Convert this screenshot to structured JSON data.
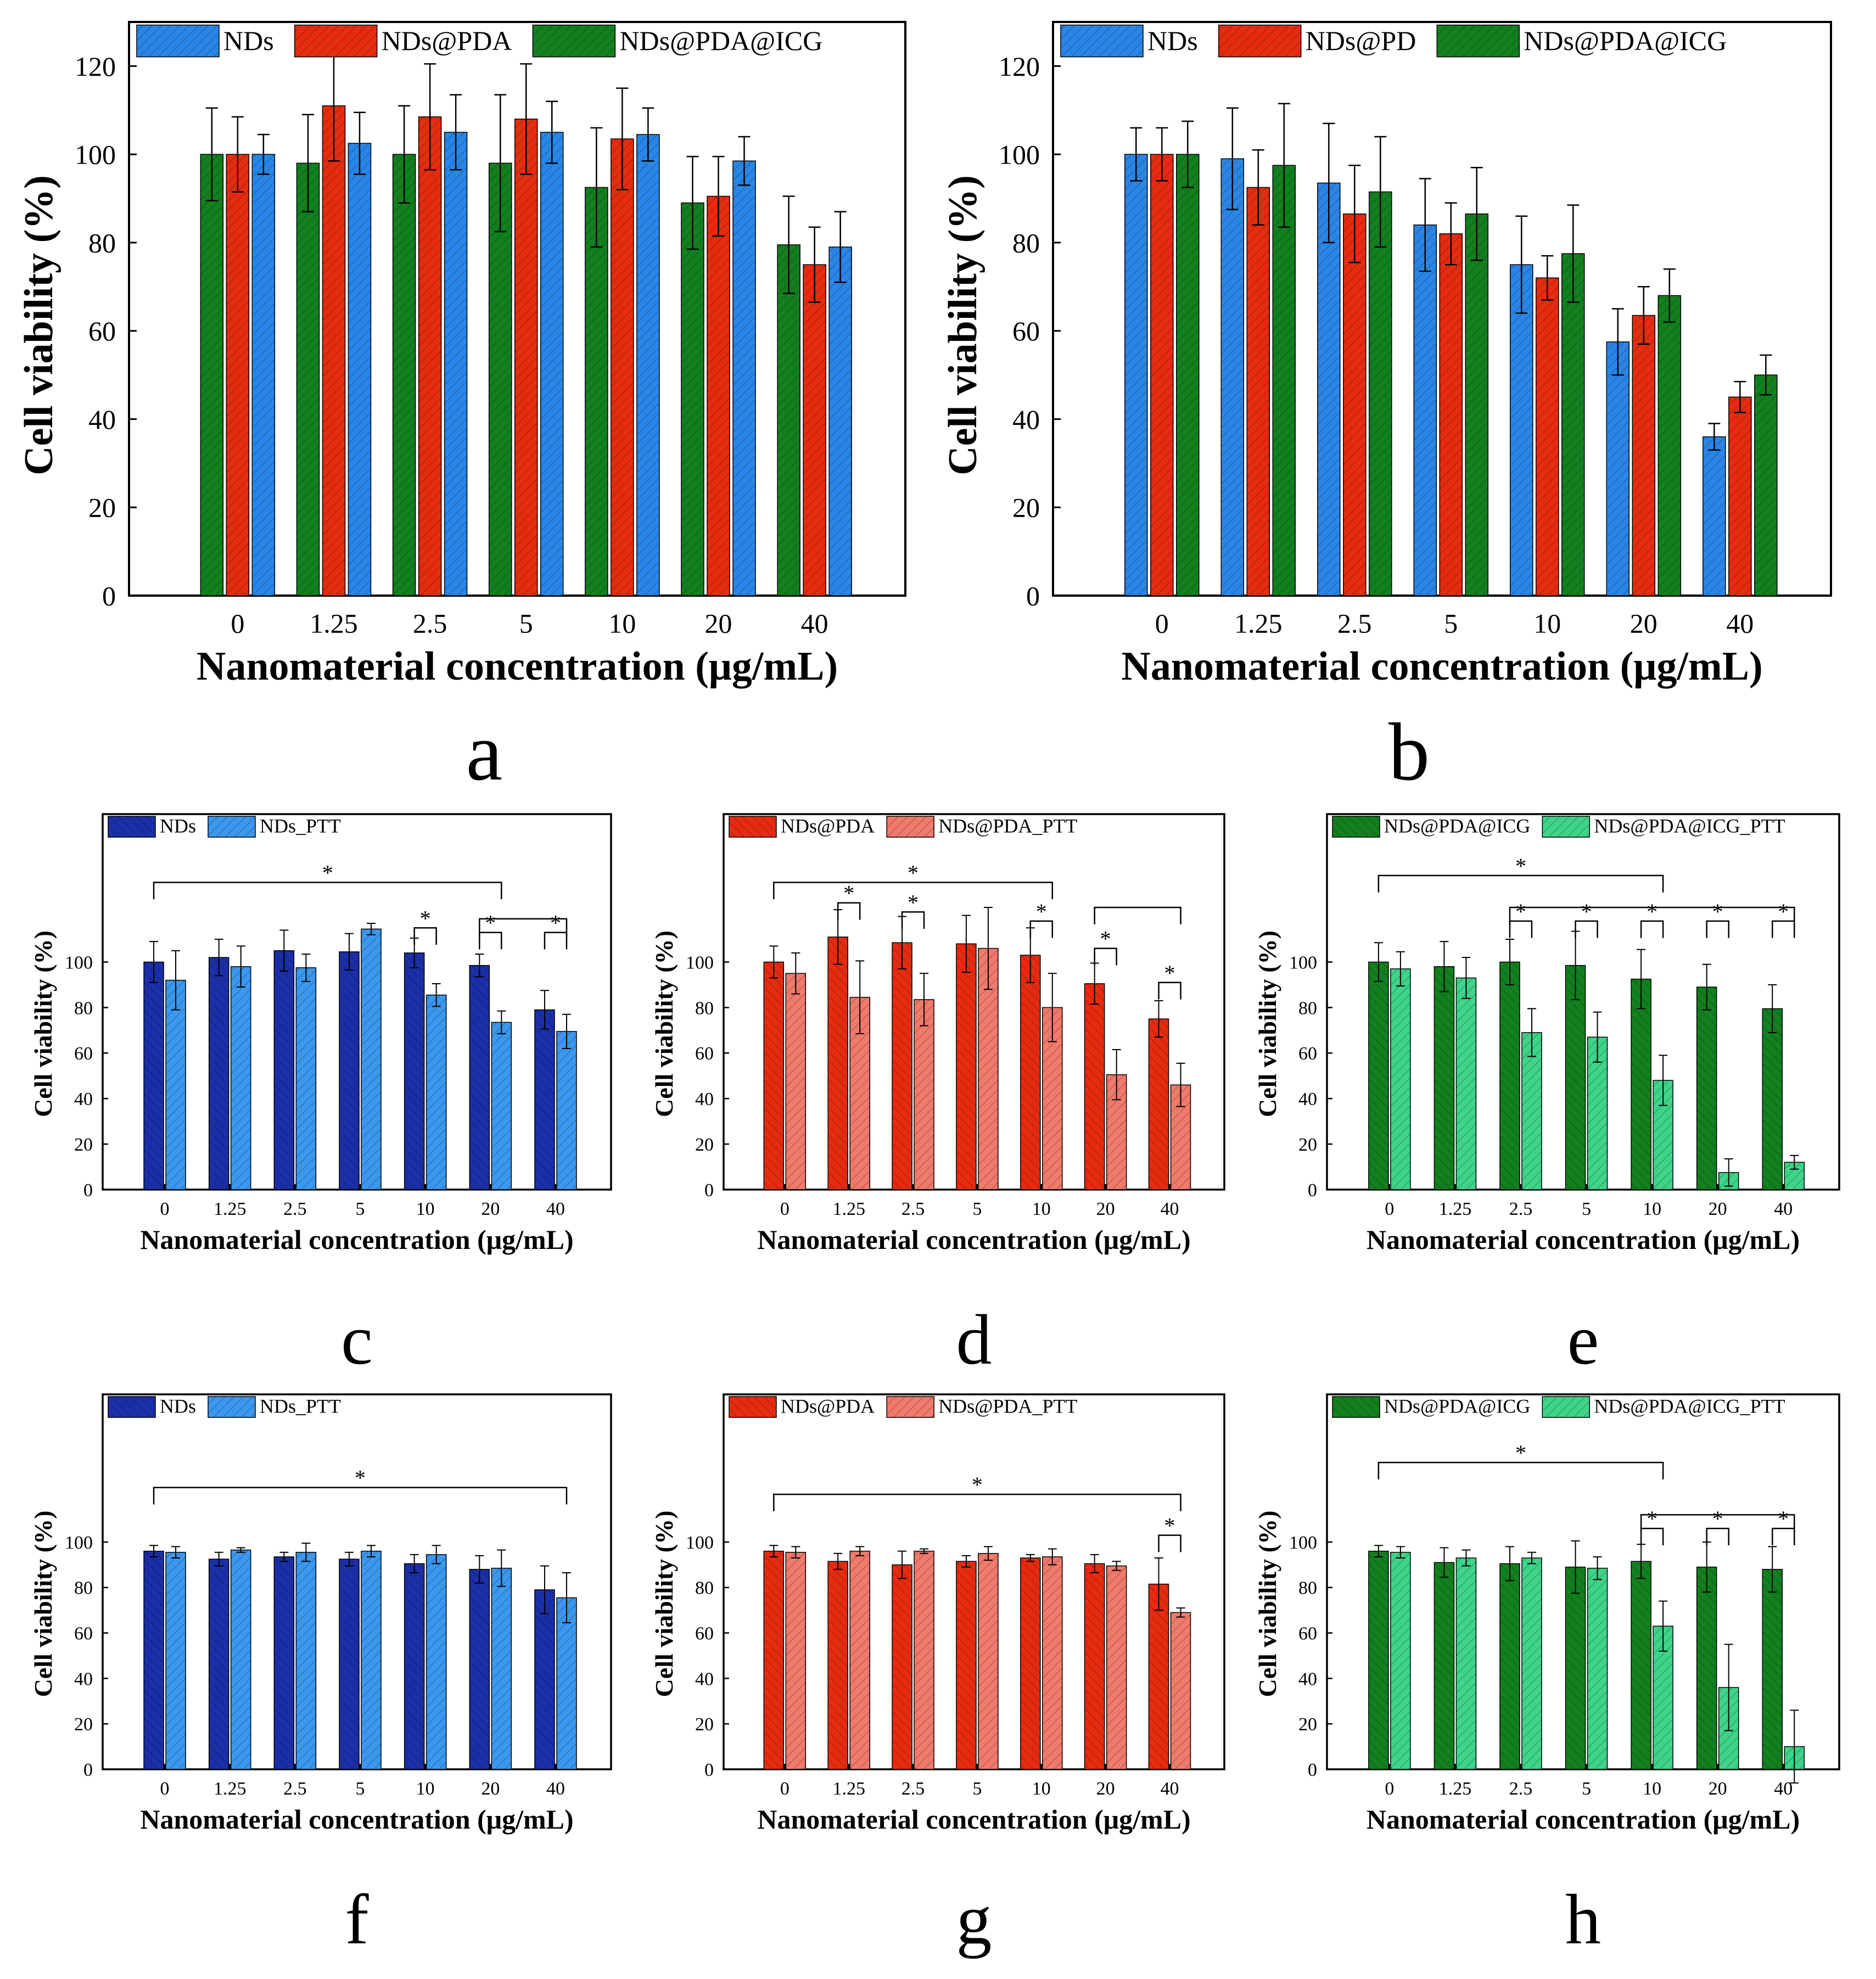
{
  "colors": {
    "blue": "#2a86e6",
    "red": "#e62c10",
    "green": "#12801f",
    "navy": "#1b2fa8",
    "light_blue": "#3b98ee",
    "light_red": "#f07a6c",
    "light_green": "#3fd489"
  },
  "chart_data": [
    {
      "panel": "a",
      "type": "bar",
      "categories": [
        "0",
        "1.25",
        "2.5",
        "5",
        "10",
        "20",
        "40"
      ],
      "series": [
        {
          "name": "NDs@PDA@ICG",
          "color_key": "green",
          "values": [
            100,
            98,
            100,
            98,
            92.5,
            89,
            79.5
          ],
          "errors": [
            10.5,
            11,
            11,
            15.5,
            13.5,
            10.5,
            11
          ]
        },
        {
          "name": "NDs@PDA",
          "color_key": "red",
          "values": [
            100,
            111,
            108.5,
            108,
            103.5,
            90.5,
            75
          ],
          "errors": [
            8.5,
            12.5,
            12,
            12.5,
            11.5,
            9,
            8.5
          ]
        },
        {
          "name": "NDs",
          "color_key": "blue",
          "values": [
            100,
            102.5,
            105,
            105,
            104.5,
            98.5,
            79
          ],
          "errors": [
            4.5,
            7,
            8.5,
            7,
            6,
            5.5,
            8
          ]
        }
      ],
      "legend": [
        "NDs",
        "NDs@PDA",
        "NDs@PDA@ICG"
      ],
      "legend_order": [
        2,
        1,
        0
      ],
      "xlabel": "Nanomaterial concentration (μg/mL)",
      "ylabel": "Cell viability (%)",
      "ylim": [
        0,
        130
      ],
      "yticks": [
        0,
        20,
        40,
        60,
        80,
        100,
        120
      ],
      "letter": "a",
      "size": "large",
      "brackets": []
    },
    {
      "panel": "b",
      "type": "bar",
      "categories": [
        "0",
        "1.25",
        "2.5",
        "5",
        "10",
        "20",
        "40"
      ],
      "series": [
        {
          "name": "NDs",
          "color_key": "blue",
          "values": [
            100,
            99,
            93.5,
            84,
            75,
            57.5,
            36
          ],
          "errors": [
            6,
            11.5,
            13.5,
            10.5,
            11,
            7.5,
            3
          ]
        },
        {
          "name": "NDs@PD",
          "color_key": "red",
          "values": [
            100,
            92.5,
            86.5,
            82,
            72,
            63.5,
            45
          ],
          "errors": [
            6,
            8.5,
            11,
            7,
            5,
            6.5,
            3.5
          ]
        },
        {
          "name": "NDs@PDA@ICG",
          "color_key": "green",
          "values": [
            100,
            97.5,
            91.5,
            86.5,
            77.5,
            68,
            50
          ],
          "errors": [
            7.5,
            14,
            12.5,
            10.5,
            11,
            6,
            4.5
          ]
        }
      ],
      "legend": [
        "NDs",
        "NDs@PD",
        "NDs@PDA@ICG"
      ],
      "legend_order": [
        0,
        1,
        2
      ],
      "xlabel": "Nanomaterial concentration (μg/mL)",
      "ylabel": "Cell viability (%)",
      "ylim": [
        0,
        130
      ],
      "yticks": [
        0,
        20,
        40,
        60,
        80,
        100,
        120
      ],
      "letter": "b",
      "size": "large",
      "brackets": []
    },
    {
      "panel": "c",
      "type": "bar",
      "categories": [
        "0",
        "1.25",
        "2.5",
        "5",
        "10",
        "20",
        "40"
      ],
      "series": [
        {
          "name": "NDs",
          "color_key": "navy",
          "values": [
            100,
            102,
            105,
            104.5,
            104,
            98.5,
            79
          ],
          "errors": [
            9,
            8,
            9,
            8,
            6.5,
            5,
            8.5
          ]
        },
        {
          "name": "NDs_PTT",
          "color_key": "light_blue",
          "values": [
            92,
            98,
            97.5,
            114.5,
            85.5,
            73.5,
            69.5
          ],
          "errors": [
            13,
            9,
            6,
            2.5,
            5,
            5,
            7.5
          ]
        }
      ],
      "legend": [
        "NDs",
        "NDs_PTT"
      ],
      "legend_order": [
        0,
        1
      ],
      "xlabel": "Nanomaterial concentration (μg/mL)",
      "ylabel": "Cell viability (%)",
      "ylim": [
        0,
        165
      ],
      "yticks": [
        0,
        20,
        40,
        60,
        80,
        100
      ],
      "letter": "c",
      "size": "small",
      "brackets": [
        {
          "from_cat": 0,
          "from_s": 0,
          "to_cat": 5,
          "to_s": 1,
          "label": "*",
          "level": 135
        },
        {
          "from_cat": 4,
          "from_s": 0,
          "to_cat": 4,
          "to_s": 1,
          "label": "*",
          "level": 115
        },
        {
          "from_cat": 5,
          "from_s": 0,
          "to_cat": 5,
          "to_s": 1,
          "label": "*",
          "level": 113
        },
        {
          "from_cat": 6,
          "from_s": 0,
          "to_cat": 6,
          "to_s": 1,
          "label": "*",
          "level": 113
        },
        {
          "from_cat": 5,
          "from_s": 0,
          "to_cat": 6,
          "to_s": 1,
          "label": "",
          "level": 119
        }
      ]
    },
    {
      "panel": "d",
      "type": "bar",
      "categories": [
        "0",
        "1.25",
        "2.5",
        "5",
        "10",
        "20",
        "40"
      ],
      "series": [
        {
          "name": "NDs@PDA",
          "color_key": "red",
          "values": [
            100,
            111,
            108.5,
            108,
            103,
            90.5,
            75
          ],
          "errors": [
            7,
            12,
            11.5,
            12.5,
            12,
            9,
            8
          ]
        },
        {
          "name": "NDs@PDA_PTT",
          "color_key": "light_red",
          "values": [
            95,
            84.5,
            83.5,
            106,
            80,
            50.5,
            46
          ],
          "errors": [
            9,
            16,
            11.5,
            18,
            15,
            11,
            9.5
          ]
        }
      ],
      "legend": [
        "NDs@PDA",
        "NDs@PDA_PTT"
      ],
      "legend_order": [
        0,
        1
      ],
      "xlabel": "Nanomaterial concentration (μg/mL)",
      "ylabel": "Cell viability (%)",
      "ylim": [
        0,
        165
      ],
      "yticks": [
        0,
        20,
        40,
        60,
        80,
        100
      ],
      "letter": "d",
      "size": "small",
      "brackets": [
        {
          "from_cat": 0,
          "from_s": 0,
          "to_cat": 4,
          "to_s": 1,
          "label": "*",
          "level": 135
        },
        {
          "from_cat": 1,
          "from_s": 0,
          "to_cat": 1,
          "to_s": 1,
          "label": "*",
          "level": 126
        },
        {
          "from_cat": 2,
          "from_s": 0,
          "to_cat": 2,
          "to_s": 1,
          "label": "*",
          "level": 122
        },
        {
          "from_cat": 4,
          "from_s": 0,
          "to_cat": 4,
          "to_s": 1,
          "label": "*",
          "level": 118
        },
        {
          "from_cat": 5,
          "from_s": 0,
          "to_cat": 5,
          "to_s": 1,
          "label": "*",
          "level": 106
        },
        {
          "from_cat": 6,
          "from_s": 0,
          "to_cat": 6,
          "to_s": 1,
          "label": "*",
          "level": 91
        },
        {
          "from_cat": 5,
          "from_s": 0,
          "to_cat": 6,
          "to_s": 1,
          "label": "",
          "level": 124
        }
      ]
    },
    {
      "panel": "e",
      "type": "bar",
      "categories": [
        "0",
        "1.25",
        "2.5",
        "5",
        "10",
        "20",
        "40"
      ],
      "series": [
        {
          "name": "NDs@PDA@ICG",
          "color_key": "green",
          "values": [
            100,
            98,
            100,
            98.5,
            92.5,
            89,
            79.5
          ],
          "errors": [
            8.5,
            11,
            10,
            15,
            13,
            10,
            10.5
          ]
        },
        {
          "name": "NDs@PDA@ICG_PTT",
          "color_key": "light_green",
          "values": [
            97,
            93,
            69,
            67,
            48,
            7.5,
            12
          ],
          "errors": [
            7.5,
            9,
            10.5,
            11,
            11,
            6,
            3
          ]
        }
      ],
      "legend": [
        "NDs@PDA@ICG",
        "NDs@PDA@ICG_PTT"
      ],
      "legend_order": [
        0,
        1
      ],
      "xlabel": "Nanomaterial concentration (μg/mL)",
      "ylabel": "Cell viability (%)",
      "ylim": [
        0,
        165
      ],
      "yticks": [
        0,
        20,
        40,
        60,
        80,
        100
      ],
      "letter": "e",
      "size": "small",
      "brackets": [
        {
          "from_cat": 0,
          "from_s": 0,
          "to_cat": 4,
          "to_s": 1,
          "label": "*",
          "level": 138
        },
        {
          "from_cat": 2,
          "from_s": 0,
          "to_cat": 2,
          "to_s": 1,
          "label": "*",
          "level": 118
        },
        {
          "from_cat": 3,
          "from_s": 0,
          "to_cat": 3,
          "to_s": 1,
          "label": "*",
          "level": 118
        },
        {
          "from_cat": 4,
          "from_s": 0,
          "to_cat": 4,
          "to_s": 1,
          "label": "*",
          "level": 118
        },
        {
          "from_cat": 5,
          "from_s": 0,
          "to_cat": 5,
          "to_s": 1,
          "label": "*",
          "level": 118
        },
        {
          "from_cat": 6,
          "from_s": 0,
          "to_cat": 6,
          "to_s": 1,
          "label": "*",
          "level": 118
        },
        {
          "from_cat": 2,
          "from_s": 0,
          "to_cat": 6,
          "to_s": 1,
          "label": "",
          "level": 124
        }
      ]
    },
    {
      "panel": "f",
      "type": "bar",
      "categories": [
        "0",
        "1.25",
        "2.5",
        "5",
        "10",
        "20",
        "40"
      ],
      "series": [
        {
          "name": "NDs",
          "color_key": "navy",
          "values": [
            96,
            92.5,
            93.5,
            92.5,
            90.5,
            88,
            79
          ],
          "errors": [
            2.5,
            3,
            2,
            3,
            4,
            6,
            10.5
          ]
        },
        {
          "name": "NDs_PTT",
          "color_key": "light_blue",
          "values": [
            95.5,
            96.5,
            95.5,
            96,
            94.5,
            88.5,
            75.5
          ],
          "errors": [
            2.5,
            1,
            4,
            2.5,
            4,
            8,
            11
          ]
        }
      ],
      "legend": [
        "NDs",
        "NDs_PTT"
      ],
      "legend_order": [
        0,
        1
      ],
      "xlabel": "Nanomaterial concentration (μg/mL)",
      "ylabel": "Cell viability (%)",
      "ylim": [
        0,
        165
      ],
      "yticks": [
        0,
        20,
        40,
        60,
        80,
        100
      ],
      "letter": "f",
      "size": "small",
      "brackets": [
        {
          "from_cat": 0,
          "from_s": 0,
          "to_cat": 6,
          "to_s": 1,
          "label": "*",
          "level": 124
        }
      ]
    },
    {
      "panel": "g",
      "type": "bar",
      "categories": [
        "0",
        "1.25",
        "2.5",
        "5",
        "10",
        "20",
        "40"
      ],
      "series": [
        {
          "name": "NDs@PDA",
          "color_key": "red",
          "values": [
            96,
            91.5,
            90,
            91.5,
            93,
            90.5,
            81.5
          ],
          "errors": [
            2.5,
            3.5,
            6,
            2.5,
            1.5,
            4,
            11.5
          ]
        },
        {
          "name": "NDs@PDA_PTT",
          "color_key": "light_red",
          "values": [
            95.5,
            96,
            96,
            95,
            93.5,
            89.5,
            69
          ],
          "errors": [
            2.5,
            2,
            1,
            3,
            3.5,
            2,
            2
          ]
        }
      ],
      "legend": [
        "NDs@PDA",
        "NDs@PDA_PTT"
      ],
      "legend_order": [
        0,
        1
      ],
      "xlabel": "Nanomaterial concentration (μg/mL)",
      "ylabel": "Cell viability (%)",
      "ylim": [
        0,
        165
      ],
      "yticks": [
        0,
        20,
        40,
        60,
        80,
        100
      ],
      "letter": "g",
      "size": "small",
      "brackets": [
        {
          "from_cat": 0,
          "from_s": 0,
          "to_cat": 6,
          "to_s": 1,
          "label": "*",
          "level": 121
        },
        {
          "from_cat": 6,
          "from_s": 0,
          "to_cat": 6,
          "to_s": 1,
          "label": "*",
          "level": 103
        }
      ]
    },
    {
      "panel": "h",
      "type": "bar",
      "categories": [
        "0",
        "1.25",
        "2.5",
        "5",
        "10",
        "20",
        "40"
      ],
      "series": [
        {
          "name": "NDs@PDA@ICG",
          "color_key": "green",
          "values": [
            96,
            91,
            90.5,
            89,
            91.5,
            89,
            88
          ],
          "errors": [
            2.5,
            6.5,
            7.5,
            11.5,
            7.5,
            11,
            10
          ]
        },
        {
          "name": "NDs@PDA@ICG_PTT",
          "color_key": "light_green",
          "values": [
            95.5,
            93,
            93,
            88.5,
            63,
            36,
            10
          ],
          "errors": [
            2.5,
            3.5,
            2.5,
            5,
            11,
            19,
            16
          ]
        }
      ],
      "legend": [
        "NDs@PDA@ICG",
        "NDs@PDA@ICG_PTT"
      ],
      "legend_order": [
        0,
        1
      ],
      "xlabel": "Nanomaterial concentration (μg/mL)",
      "ylabel": "Cell viability (%)",
      "ylim": [
        0,
        165
      ],
      "yticks": [
        0,
        20,
        40,
        60,
        80,
        100
      ],
      "letter": "h",
      "size": "small",
      "brackets": [
        {
          "from_cat": 0,
          "from_s": 0,
          "to_cat": 4,
          "to_s": 1,
          "label": "*",
          "level": 135
        },
        {
          "from_cat": 4,
          "from_s": 0,
          "to_cat": 4,
          "to_s": 1,
          "label": "*",
          "level": 106
        },
        {
          "from_cat": 5,
          "from_s": 0,
          "to_cat": 5,
          "to_s": 1,
          "label": "*",
          "level": 106
        },
        {
          "from_cat": 6,
          "from_s": 0,
          "to_cat": 6,
          "to_s": 1,
          "label": "*",
          "level": 106
        },
        {
          "from_cat": 4,
          "from_s": 0,
          "to_cat": 6,
          "to_s": 1,
          "label": "",
          "level": 112
        }
      ]
    }
  ]
}
